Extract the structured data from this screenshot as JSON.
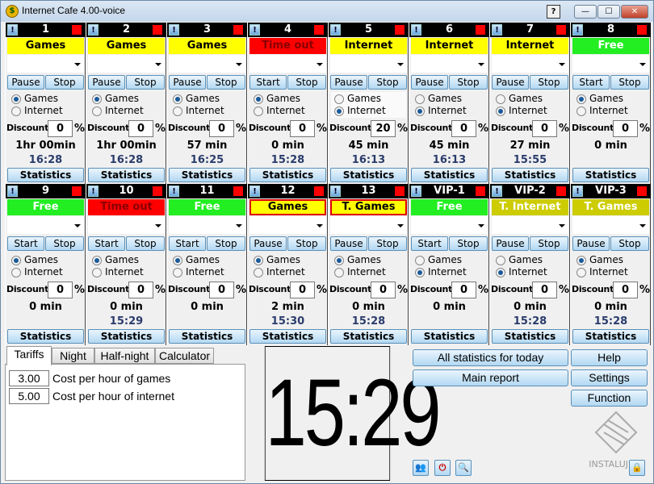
{
  "window": {
    "title": "Internet Cafe 4.00-voice",
    "help_glyph": "?",
    "min_glyph": "—",
    "max_glyph": "☐",
    "close_glyph": "✕"
  },
  "status_colors": {
    "Games": "#ffff00",
    "Internet": "#ffff00",
    "Time out": "#ff0000",
    "Free": "#22ee22",
    "T. Games": "#ffff00",
    "T. Internet": "#cccc00"
  },
  "panel_labels": {
    "alert": "!",
    "games": "Games",
    "internet": "Internet",
    "discount": "Discount",
    "percent": "%",
    "statistics": "Statistics"
  },
  "panels": [
    {
      "name": "1",
      "status": "Games",
      "b1": "Pause",
      "b2": "Stop",
      "mode": "games",
      "discount": "0",
      "time": "1hr 00min",
      "clock": "16:28"
    },
    {
      "name": "2",
      "status": "Games",
      "b1": "Pause",
      "b2": "Stop",
      "mode": "games",
      "discount": "0",
      "time": "1hr 00min",
      "clock": "16:28"
    },
    {
      "name": "3",
      "status": "Games",
      "b1": "Pause",
      "b2": "Stop",
      "mode": "games",
      "discount": "0",
      "time": "57 min",
      "clock": "16:25"
    },
    {
      "name": "4",
      "status": "Time out",
      "b1": "Start",
      "b2": "Stop",
      "mode": "games",
      "discount": "0",
      "time": "0 min",
      "clock": "15:28"
    },
    {
      "name": "5",
      "status": "Internet",
      "b1": "Pause",
      "b2": "Stop",
      "mode": "internet",
      "discount": "20",
      "time": "45 min",
      "clock": "16:13"
    },
    {
      "name": "6",
      "status": "Internet",
      "b1": "Pause",
      "b2": "Stop",
      "mode": "internet",
      "discount": "0",
      "time": "45 min",
      "clock": "16:13"
    },
    {
      "name": "7",
      "status": "Internet",
      "b1": "Pause",
      "b2": "Stop",
      "mode": "internet",
      "discount": "0",
      "time": "27 min",
      "clock": "15:55"
    },
    {
      "name": "8",
      "status": "Free",
      "b1": "Start",
      "b2": "Stop",
      "mode": "games",
      "discount": "0",
      "time": "0 min",
      "clock": ""
    },
    {
      "name": "9",
      "status": "Free",
      "b1": "Start",
      "b2": "Stop",
      "mode": "games",
      "discount": "0",
      "time": "0 min",
      "clock": ""
    },
    {
      "name": "10",
      "status": "Time out",
      "b1": "Start",
      "b2": "Stop",
      "mode": "games",
      "discount": "0",
      "time": "0 min",
      "clock": "15:29"
    },
    {
      "name": "11",
      "status": "Free",
      "b1": "Start",
      "b2": "Stop",
      "mode": "games",
      "discount": "0",
      "time": "0 min",
      "clock": ""
    },
    {
      "name": "12",
      "status": "Games",
      "b1": "Pause",
      "b2": "Stop",
      "mode": "games",
      "discount": "0",
      "time": "2 min",
      "clock": "15:30",
      "outlined": true
    },
    {
      "name": "13",
      "status": "T. Games",
      "b1": "Pause",
      "b2": "Stop",
      "mode": "games",
      "discount": "0",
      "time": "0 min",
      "clock": "15:28",
      "outlined": true
    },
    {
      "name": "VIP-1",
      "status": "Free",
      "b1": "Start",
      "b2": "Stop",
      "mode": "internet",
      "discount": "0",
      "time": "0 min",
      "clock": ""
    },
    {
      "name": "VIP-2",
      "status": "T. Internet",
      "b1": "Pause",
      "b2": "Stop",
      "mode": "internet",
      "discount": "0",
      "time": "0 min",
      "clock": "15:28"
    },
    {
      "name": "VIP-3",
      "status": "T. Games",
      "b1": "Pause",
      "b2": "Stop",
      "mode": "games",
      "discount": "0",
      "time": "0 min",
      "clock": "15:28",
      "olive": true
    }
  ],
  "tabs": [
    "Tariffs",
    "Night",
    "Half-night",
    "Calculator"
  ],
  "tariffs": [
    {
      "value": "3.00",
      "label": "Cost per hour of games"
    },
    {
      "value": "5.00",
      "label": "Cost per hour of internet"
    }
  ],
  "clock": "15:29",
  "buttons": {
    "all_stats": "All statistics for today",
    "main_report": "Main report",
    "help": "Help",
    "settings": "Settings",
    "function": "Function"
  },
  "watermark": "INSTALUJ.CZ"
}
